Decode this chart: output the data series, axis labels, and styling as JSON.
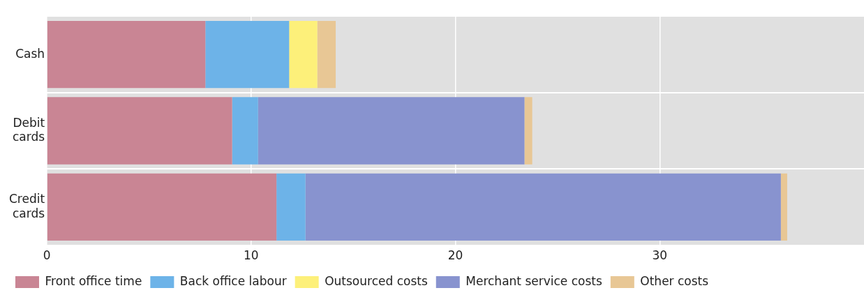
{
  "chart_data": {
    "type": "bar",
    "orientation": "horizontal",
    "stacked": true,
    "categories": [
      "Cash",
      "Debit cards",
      "Credit cards"
    ],
    "series": [
      {
        "name": "Front office time",
        "color": "#c98594",
        "values": [
          7.76,
          9.07,
          11.24
        ]
      },
      {
        "name": "Back office labour",
        "color": "#6db3e8",
        "values": [
          4.1,
          1.27,
          1.42
        ]
      },
      {
        "name": "Outsourced costs",
        "color": "#fdf07a",
        "values": [
          1.38,
          null,
          null
        ]
      },
      {
        "name": "Merchant service costs",
        "color": "#8893cf",
        "values": [
          null,
          13.04,
          23.27
        ]
      },
      {
        "name": "Other costs",
        "color": "#e8c795",
        "values": [
          0.9,
          0.38,
          0.31
        ]
      }
    ],
    "xlim": [
      0,
      40
    ],
    "xticks": [
      0,
      10,
      20,
      30
    ],
    "grid": true,
    "legend": "bottom"
  }
}
